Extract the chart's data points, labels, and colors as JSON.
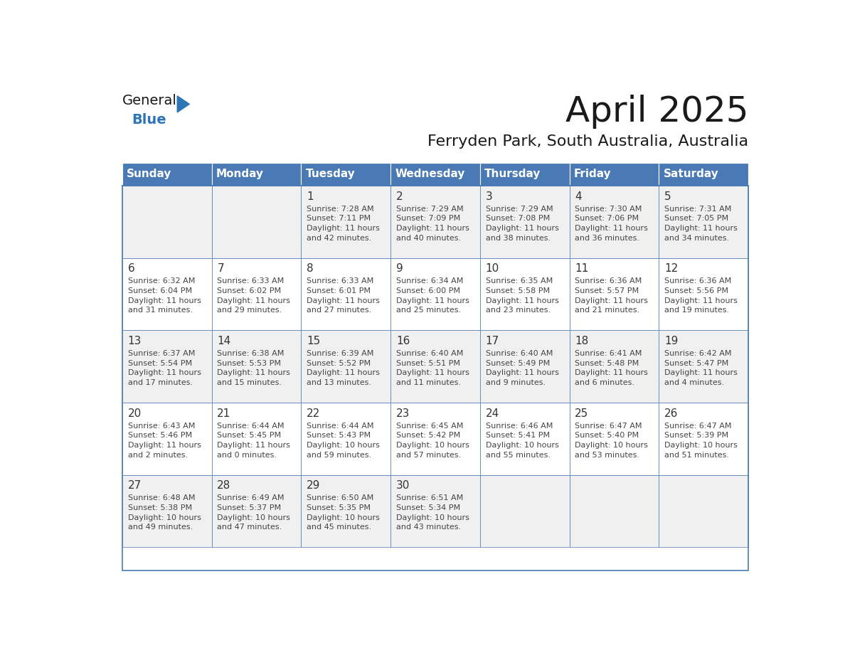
{
  "title": "April 2025",
  "subtitle": "Ferryden Park, South Australia, Australia",
  "days_of_week": [
    "Sunday",
    "Monday",
    "Tuesday",
    "Wednesday",
    "Thursday",
    "Friday",
    "Saturday"
  ],
  "header_bg": "#4a7ab5",
  "header_text": "#FFFFFF",
  "row_bg_white": "#FFFFFF",
  "row_bg_gray": "#F0F0F0",
  "cell_border": "#4a7ab5",
  "day_num_color": "#333333",
  "text_color": "#444444",
  "logo_general_color": "#1a1a1a",
  "logo_blue_color": "#2E75B6",
  "weeks": [
    {
      "days": [
        {
          "date": null,
          "info": null
        },
        {
          "date": null,
          "info": null
        },
        {
          "date": "1",
          "info": "Sunrise: 7:28 AM\nSunset: 7:11 PM\nDaylight: 11 hours\nand 42 minutes."
        },
        {
          "date": "2",
          "info": "Sunrise: 7:29 AM\nSunset: 7:09 PM\nDaylight: 11 hours\nand 40 minutes."
        },
        {
          "date": "3",
          "info": "Sunrise: 7:29 AM\nSunset: 7:08 PM\nDaylight: 11 hours\nand 38 minutes."
        },
        {
          "date": "4",
          "info": "Sunrise: 7:30 AM\nSunset: 7:06 PM\nDaylight: 11 hours\nand 36 minutes."
        },
        {
          "date": "5",
          "info": "Sunrise: 7:31 AM\nSunset: 7:05 PM\nDaylight: 11 hours\nand 34 minutes."
        }
      ]
    },
    {
      "days": [
        {
          "date": "6",
          "info": "Sunrise: 6:32 AM\nSunset: 6:04 PM\nDaylight: 11 hours\nand 31 minutes."
        },
        {
          "date": "7",
          "info": "Sunrise: 6:33 AM\nSunset: 6:02 PM\nDaylight: 11 hours\nand 29 minutes."
        },
        {
          "date": "8",
          "info": "Sunrise: 6:33 AM\nSunset: 6:01 PM\nDaylight: 11 hours\nand 27 minutes."
        },
        {
          "date": "9",
          "info": "Sunrise: 6:34 AM\nSunset: 6:00 PM\nDaylight: 11 hours\nand 25 minutes."
        },
        {
          "date": "10",
          "info": "Sunrise: 6:35 AM\nSunset: 5:58 PM\nDaylight: 11 hours\nand 23 minutes."
        },
        {
          "date": "11",
          "info": "Sunrise: 6:36 AM\nSunset: 5:57 PM\nDaylight: 11 hours\nand 21 minutes."
        },
        {
          "date": "12",
          "info": "Sunrise: 6:36 AM\nSunset: 5:56 PM\nDaylight: 11 hours\nand 19 minutes."
        }
      ]
    },
    {
      "days": [
        {
          "date": "13",
          "info": "Sunrise: 6:37 AM\nSunset: 5:54 PM\nDaylight: 11 hours\nand 17 minutes."
        },
        {
          "date": "14",
          "info": "Sunrise: 6:38 AM\nSunset: 5:53 PM\nDaylight: 11 hours\nand 15 minutes."
        },
        {
          "date": "15",
          "info": "Sunrise: 6:39 AM\nSunset: 5:52 PM\nDaylight: 11 hours\nand 13 minutes."
        },
        {
          "date": "16",
          "info": "Sunrise: 6:40 AM\nSunset: 5:51 PM\nDaylight: 11 hours\nand 11 minutes."
        },
        {
          "date": "17",
          "info": "Sunrise: 6:40 AM\nSunset: 5:49 PM\nDaylight: 11 hours\nand 9 minutes."
        },
        {
          "date": "18",
          "info": "Sunrise: 6:41 AM\nSunset: 5:48 PM\nDaylight: 11 hours\nand 6 minutes."
        },
        {
          "date": "19",
          "info": "Sunrise: 6:42 AM\nSunset: 5:47 PM\nDaylight: 11 hours\nand 4 minutes."
        }
      ]
    },
    {
      "days": [
        {
          "date": "20",
          "info": "Sunrise: 6:43 AM\nSunset: 5:46 PM\nDaylight: 11 hours\nand 2 minutes."
        },
        {
          "date": "21",
          "info": "Sunrise: 6:44 AM\nSunset: 5:45 PM\nDaylight: 11 hours\nand 0 minutes."
        },
        {
          "date": "22",
          "info": "Sunrise: 6:44 AM\nSunset: 5:43 PM\nDaylight: 10 hours\nand 59 minutes."
        },
        {
          "date": "23",
          "info": "Sunrise: 6:45 AM\nSunset: 5:42 PM\nDaylight: 10 hours\nand 57 minutes."
        },
        {
          "date": "24",
          "info": "Sunrise: 6:46 AM\nSunset: 5:41 PM\nDaylight: 10 hours\nand 55 minutes."
        },
        {
          "date": "25",
          "info": "Sunrise: 6:47 AM\nSunset: 5:40 PM\nDaylight: 10 hours\nand 53 minutes."
        },
        {
          "date": "26",
          "info": "Sunrise: 6:47 AM\nSunset: 5:39 PM\nDaylight: 10 hours\nand 51 minutes."
        }
      ]
    },
    {
      "days": [
        {
          "date": "27",
          "info": "Sunrise: 6:48 AM\nSunset: 5:38 PM\nDaylight: 10 hours\nand 49 minutes."
        },
        {
          "date": "28",
          "info": "Sunrise: 6:49 AM\nSunset: 5:37 PM\nDaylight: 10 hours\nand 47 minutes."
        },
        {
          "date": "29",
          "info": "Sunrise: 6:50 AM\nSunset: 5:35 PM\nDaylight: 10 hours\nand 45 minutes."
        },
        {
          "date": "30",
          "info": "Sunrise: 6:51 AM\nSunset: 5:34 PM\nDaylight: 10 hours\nand 43 minutes."
        },
        {
          "date": null,
          "info": null
        },
        {
          "date": null,
          "info": null
        },
        {
          "date": null,
          "info": null
        }
      ]
    }
  ]
}
